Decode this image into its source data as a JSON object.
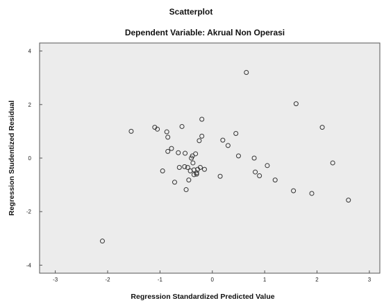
{
  "chart_data": {
    "type": "scatter",
    "title": "Scatterplot",
    "subtitle": "Dependent Variable: Akrual Non Operasi",
    "xlabel": "Regression Standardized Predicted Value",
    "ylabel": "Regression Studentized Residual",
    "xlim": [
      -3.3,
      3.2
    ],
    "ylim": [
      -4.3,
      4.3
    ],
    "xticks": [
      -3,
      -2,
      -1,
      0,
      1,
      2,
      3
    ],
    "yticks": [
      -4,
      -2,
      0,
      2,
      4
    ],
    "xtick_labels": [
      "-3",
      "-2",
      "-1",
      "0",
      "1",
      "2",
      "3"
    ],
    "ytick_labels": [
      "-4",
      "-2",
      "0",
      "2",
      "4"
    ],
    "grid": false,
    "plot_background": "#ececec",
    "point_color": "#333333",
    "points": [
      {
        "x": -2.1,
        "y": -3.1
      },
      {
        "x": -1.55,
        "y": 1.0
      },
      {
        "x": -1.1,
        "y": 1.15
      },
      {
        "x": -1.05,
        "y": 1.08
      },
      {
        "x": -0.95,
        "y": -0.48
      },
      {
        "x": -0.87,
        "y": 0.98
      },
      {
        "x": -0.85,
        "y": 0.78
      },
      {
        "x": -0.85,
        "y": 0.25
      },
      {
        "x": -0.78,
        "y": 0.36
      },
      {
        "x": -0.72,
        "y": -0.9
      },
      {
        "x": -0.65,
        "y": 0.2
      },
      {
        "x": -0.63,
        "y": -0.35
      },
      {
        "x": -0.58,
        "y": 1.18
      },
      {
        "x": -0.53,
        "y": -0.32
      },
      {
        "x": -0.52,
        "y": 0.18
      },
      {
        "x": -0.5,
        "y": -1.18
      },
      {
        "x": -0.47,
        "y": -0.35
      },
      {
        "x": -0.45,
        "y": -0.82
      },
      {
        "x": -0.42,
        "y": -0.48
      },
      {
        "x": -0.4,
        "y": -0.0
      },
      {
        "x": -0.38,
        "y": 0.08
      },
      {
        "x": -0.37,
        "y": -0.18
      },
      {
        "x": -0.35,
        "y": -0.44
      },
      {
        "x": -0.35,
        "y": -0.62
      },
      {
        "x": -0.32,
        "y": 0.16
      },
      {
        "x": -0.3,
        "y": -0.55
      },
      {
        "x": -0.3,
        "y": -0.6
      },
      {
        "x": -0.28,
        "y": -0.42
      },
      {
        "x": -0.25,
        "y": 0.65
      },
      {
        "x": -0.23,
        "y": -0.35
      },
      {
        "x": -0.2,
        "y": 1.45
      },
      {
        "x": -0.2,
        "y": 0.82
      },
      {
        "x": -0.15,
        "y": -0.42
      },
      {
        "x": 0.15,
        "y": -0.68
      },
      {
        "x": 0.2,
        "y": 0.67
      },
      {
        "x": 0.3,
        "y": 0.47
      },
      {
        "x": 0.45,
        "y": 0.92
      },
      {
        "x": 0.5,
        "y": 0.08
      },
      {
        "x": 0.65,
        "y": 3.2
      },
      {
        "x": 0.8,
        "y": -0.0
      },
      {
        "x": 0.82,
        "y": -0.52
      },
      {
        "x": 0.9,
        "y": -0.66
      },
      {
        "x": 1.05,
        "y": -0.28
      },
      {
        "x": 1.2,
        "y": -0.82
      },
      {
        "x": 1.55,
        "y": -1.22
      },
      {
        "x": 1.6,
        "y": 2.03
      },
      {
        "x": 1.9,
        "y": -1.32
      },
      {
        "x": 2.1,
        "y": 1.15
      },
      {
        "x": 2.3,
        "y": -0.18
      },
      {
        "x": 2.6,
        "y": -1.57
      }
    ]
  }
}
